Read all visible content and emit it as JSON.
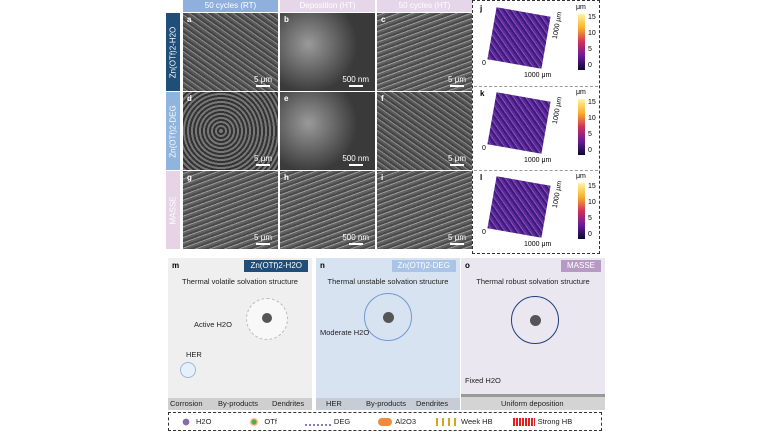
{
  "columns": [
    "50 cycles (RT)",
    "Deposition (HT)",
    "50 cycles (HT)"
  ],
  "rows": [
    "Zn(OTf)2-H2O",
    "Zn(OTf)2-DEG",
    "MASSE"
  ],
  "sem_panels": [
    {
      "label": "a",
      "scale": "5 μm"
    },
    {
      "label": "b",
      "scale": "500 nm"
    },
    {
      "label": "c",
      "scale": "5 μm"
    },
    {
      "label": "d",
      "scale": "5 μm"
    },
    {
      "label": "e",
      "scale": "500 nm"
    },
    {
      "label": "f",
      "scale": "5 μm"
    },
    {
      "label": "g",
      "scale": "5 μm"
    },
    {
      "label": "h",
      "scale": "500 nm"
    },
    {
      "label": "i",
      "scale": "5 μm"
    }
  ],
  "afm": {
    "panels": [
      "j",
      "k",
      "l"
    ],
    "unit": "μm",
    "ticks": [
      "15",
      "10",
      "5",
      "0"
    ],
    "axis_x": "1000 μm",
    "axis_y": "1000 μm",
    "origin": "0"
  },
  "schematics": [
    {
      "label": "m",
      "tag": "Zn(OTf)2-H2O",
      "title": "Thermal volatile solvation structure",
      "notes": [
        "Active H2O",
        "HER"
      ],
      "bottom": [
        "Corrosion",
        "By-products",
        "Dendrites"
      ],
      "color": "#1f4e79"
    },
    {
      "label": "n",
      "tag": "Zn(OTf)2-DEG",
      "title": "Thermal unstable solvation structure",
      "notes": [
        "Moderate H2O"
      ],
      "bottom": [
        "HER",
        "By-products",
        "Dendrites"
      ],
      "color": "#a9c4e6"
    },
    {
      "label": "o",
      "tag": "MASSE",
      "title": "Thermal robust solvation structure",
      "notes": [
        "Fixed H2O"
      ],
      "bottom": [
        "Uniform deposition"
      ],
      "color": "#b79ac4"
    }
  ],
  "legend": [
    "H2O",
    "OTf",
    "DEG",
    "Al2O3",
    "Week HB",
    "Strong HB"
  ]
}
